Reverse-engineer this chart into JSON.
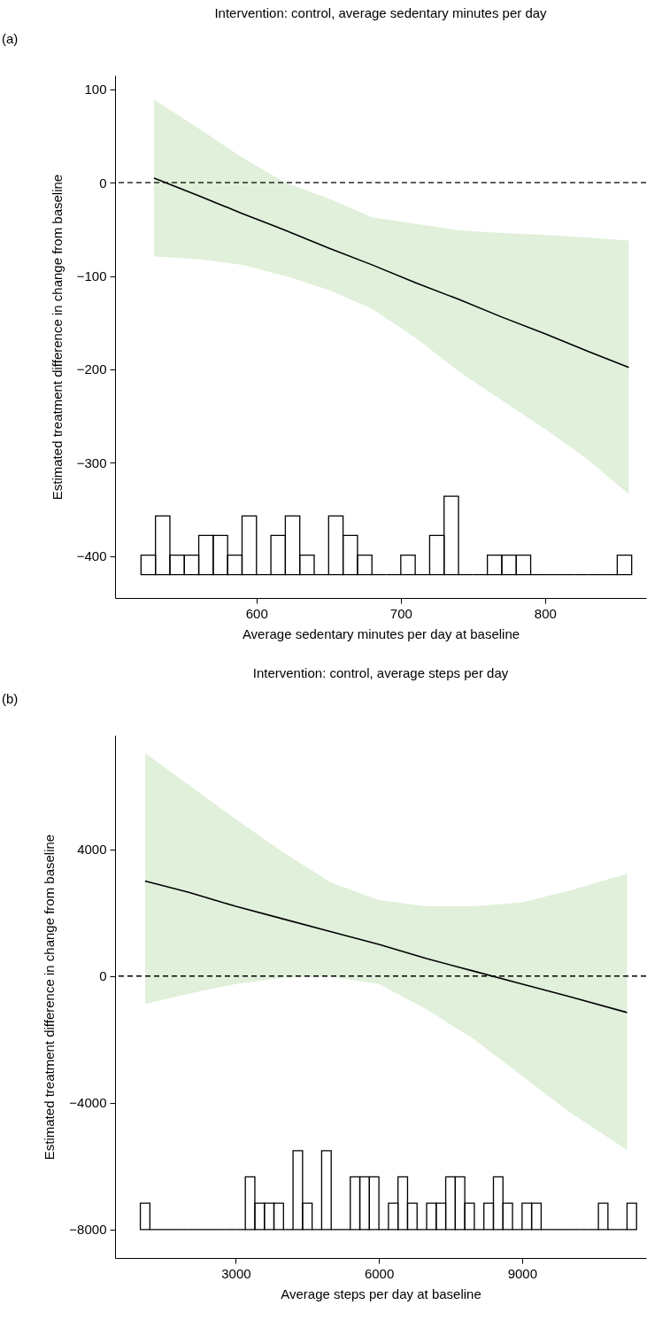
{
  "chart_data": [
    {
      "type": "line",
      "title": "Intervention: control, average sedentary minutes per day",
      "xlabel": "Average sedentary minutes per day at baseline",
      "ylabel": "Estimated treatment difference in change from baseline",
      "annotations": [
        "(a)"
      ],
      "xlim": [
        502,
        870
      ],
      "ylim": [
        -445,
        115
      ],
      "xticks": [
        600,
        700,
        800
      ],
      "yticks": [
        {
          "value": -400,
          "label": "−400"
        },
        {
          "value": -300,
          "label": "−300"
        },
        {
          "value": -200,
          "label": "−200"
        },
        {
          "value": -100,
          "label": "−100"
        },
        0,
        100
      ],
      "ref_lines": [
        {
          "axis": "y",
          "value": 0,
          "color": "#000000",
          "line_style": "dashed"
        }
      ],
      "series": [
        {
          "color": "#000000",
          "x": [
            529,
            560,
            590,
            620,
            650,
            680,
            710,
            740,
            770,
            800,
            830,
            858
          ],
          "values": [
            5,
            -14,
            -33,
            -51,
            -70,
            -88,
            -107,
            -125,
            -144,
            -162,
            -181,
            -198
          ],
          "lower": [
            -79,
            -82,
            -88,
            -100,
            -115,
            -135,
            -166,
            -202,
            -233,
            -264,
            -297,
            -334
          ],
          "upper": [
            89,
            58,
            27,
            0,
            -17,
            -37,
            -44,
            -51,
            -54,
            -56,
            -59,
            -62
          ]
        },
        {
          "type": "histogram",
          "color": "#000000",
          "bins": [
            520,
            530,
            540,
            550,
            560,
            570,
            580,
            590,
            600,
            610,
            620,
            630,
            640,
            650,
            660,
            670,
            680,
            690,
            700,
            710,
            720,
            730,
            740,
            750,
            760,
            770,
            780,
            790,
            800,
            810,
            820,
            830,
            840,
            850,
            860
          ],
          "values": [
            21,
            63,
            21,
            21,
            42,
            42,
            21,
            63,
            0,
            42,
            63,
            21,
            0,
            63,
            42,
            21,
            0,
            0,
            21,
            0,
            42,
            84,
            0,
            0,
            21,
            21,
            21,
            0,
            0,
            0,
            0,
            0,
            0,
            21
          ],
          "base": [
            -420,
            -420,
            -420,
            -420,
            -420,
            -420,
            -420,
            -420,
            -420,
            -420,
            -420,
            -420,
            -420,
            -420,
            -420,
            -420,
            -420,
            -420,
            -420,
            -420,
            -420,
            -420,
            -420,
            -420,
            -420,
            -420,
            -420,
            -420,
            -420,
            -420,
            -420,
            -420,
            -420,
            -420
          ]
        }
      ]
    },
    {
      "type": "line",
      "title": "Intervention: control, average steps per day",
      "xlabel": "Average steps per day at baseline",
      "ylabel": "Estimated treatment difference in change from baseline",
      "annotations": [
        "(b)"
      ],
      "xlim": [
        470,
        11600
      ],
      "ylim": [
        -8900,
        7600
      ],
      "xticks": [
        3000,
        6000,
        9000
      ],
      "yticks": [
        {
          "value": -8000,
          "label": "−8000"
        },
        {
          "value": -4000,
          "label": "−4000"
        },
        0,
        4000
      ],
      "ref_lines": [
        {
          "axis": "y",
          "value": 0,
          "color": "#000000",
          "line_style": "dashed"
        }
      ],
      "series": [
        {
          "color": "#000000",
          "x": [
            1100,
            2000,
            3000,
            4000,
            5000,
            6000,
            7000,
            8000,
            9000,
            10000,
            11200
          ],
          "values": [
            3000,
            2650,
            2200,
            1800,
            1400,
            1000,
            550,
            150,
            -250,
            -650,
            -1150
          ],
          "lower": [
            -884,
            -560,
            -250,
            -50,
            -20,
            -250,
            -1050,
            -2000,
            -3150,
            -4300,
            -5486
          ],
          "upper": [
            7040,
            6050,
            4950,
            3900,
            2950,
            2400,
            2200,
            2200,
            2330,
            2700,
            3230
          ]
        },
        {
          "type": "histogram",
          "color": "#000000",
          "bins": [
            1000,
            1200,
            1400,
            1600,
            1800,
            2000,
            2200,
            2400,
            2600,
            2800,
            3000,
            3200,
            3400,
            3600,
            3800,
            4000,
            4200,
            4400,
            4600,
            4800,
            5000,
            5200,
            5400,
            5600,
            5800,
            6000,
            6200,
            6400,
            6600,
            6800,
            7000,
            7200,
            7400,
            7600,
            7800,
            8000,
            8200,
            8400,
            8600,
            8800,
            9000,
            9200,
            9400,
            9600,
            9800,
            10000,
            10200,
            10400,
            10600,
            10800,
            11000,
            11200,
            11400
          ],
          "values": [
            830,
            0,
            0,
            0,
            0,
            0,
            0,
            0,
            0,
            0,
            0,
            1660,
            830,
            830,
            830,
            0,
            2490,
            830,
            0,
            2490,
            0,
            0,
            1660,
            1660,
            1660,
            0,
            830,
            1660,
            830,
            0,
            830,
            830,
            1660,
            1660,
            830,
            0,
            830,
            1660,
            830,
            0,
            830,
            830,
            0,
            0,
            0,
            0,
            0,
            0,
            830,
            0,
            0,
            830
          ],
          "base": [
            -8000,
            -8000,
            -8000,
            -8000,
            -8000,
            -8000,
            -8000,
            -8000,
            -8000,
            -8000,
            -8000,
            -8000,
            -8000,
            -8000,
            -8000,
            -8000,
            -8000,
            -8000,
            -8000,
            -8000,
            -8000,
            -8000,
            -8000,
            -8000,
            -8000,
            -8000,
            -8000,
            -8000,
            -8000,
            -8000,
            -8000,
            -8000,
            -8000,
            -8000,
            -8000,
            -8000,
            -8000,
            -8000,
            -8000,
            -8000,
            -8000,
            -8000,
            -8000,
            -8000,
            -8000,
            -8000,
            -8000,
            -8000,
            -8000,
            -8000,
            -8000,
            -8000
          ]
        }
      ]
    }
  ]
}
